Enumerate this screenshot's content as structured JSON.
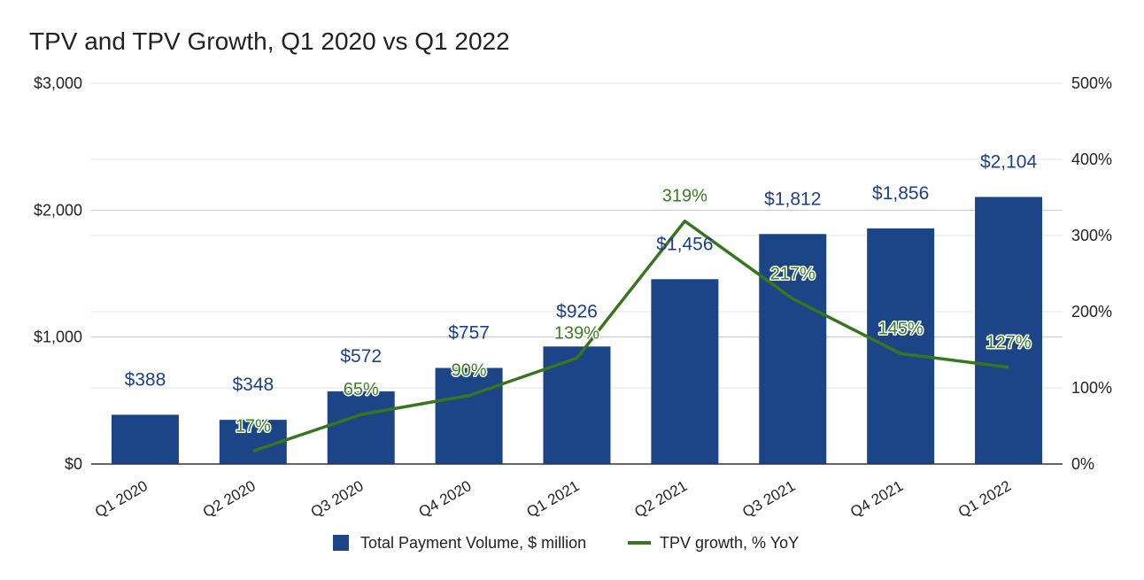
{
  "chart_data": {
    "type": "bar",
    "title": "TPV and TPV Growth, Q1 2020 vs Q1 2022",
    "categories": [
      "Q1 2020",
      "Q2 2020",
      "Q3 2020",
      "Q4 2020",
      "Q1 2021",
      "Q2 2021",
      "Q3 2021",
      "Q4 2021",
      "Q1 2022"
    ],
    "series": [
      {
        "name": "Total Payment Volume, $ million",
        "type": "bar",
        "axis": "left",
        "color": "#1c4587",
        "values": [
          388,
          348,
          572,
          757,
          926,
          1456,
          1812,
          1856,
          2104
        ],
        "labels": [
          "$388",
          "$348",
          "$572",
          "$757",
          "$926",
          "$1,456",
          "$1,812",
          "$1,856",
          "$2,104"
        ]
      },
      {
        "name": "TPV growth, % YoY",
        "type": "line",
        "axis": "right",
        "color": "#38761d",
        "values": [
          null,
          17,
          65,
          90,
          139,
          319,
          217,
          145,
          127
        ],
        "labels": [
          "",
          "17%",
          "65%",
          "90%",
          "139%",
          "319%",
          "217%",
          "145%",
          "127%"
        ]
      }
    ],
    "y_left": {
      "ylim": [
        0,
        3000
      ],
      "ticks": [
        0,
        1000,
        2000,
        3000
      ],
      "tick_labels": [
        "$0",
        "$1,000",
        "$2,000",
        "$3,000"
      ]
    },
    "y_right": {
      "ylim": [
        0,
        500
      ],
      "ticks": [
        0,
        100,
        200,
        300,
        400,
        500
      ],
      "tick_labels": [
        "0%",
        "100%",
        "200%",
        "300%",
        "400%",
        "500%"
      ]
    },
    "xlabel": "",
    "ylabel": "",
    "grid": true,
    "legend": "bottom"
  }
}
